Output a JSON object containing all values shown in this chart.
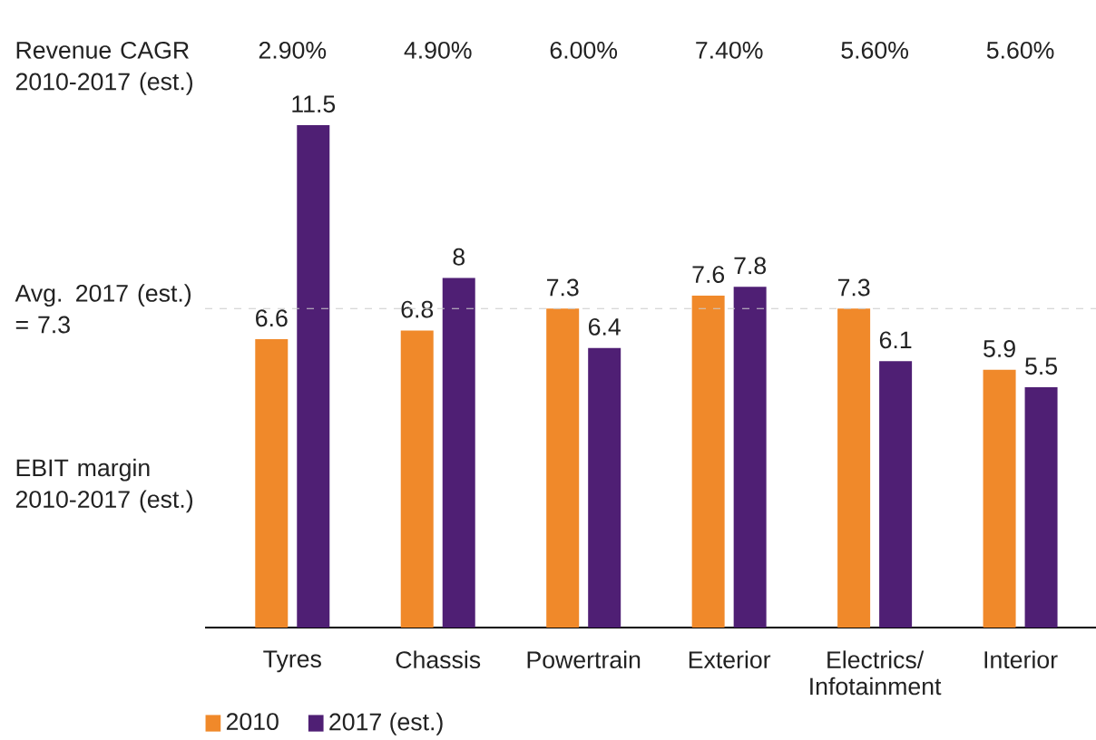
{
  "chart_data": {
    "type": "bar",
    "categories": [
      "Tyres",
      "Chassis",
      "Powertrain",
      "Exterior",
      "Electrics/ Infotainment",
      "Interior"
    ],
    "series": [
      {
        "name": "2010",
        "color": "#f0892a",
        "values": [
          6.6,
          6.8,
          7.3,
          7.6,
          7.3,
          5.9
        ]
      },
      {
        "name": "2017 (est.)",
        "color": "#4f1f74",
        "values": [
          11.5,
          8,
          6.4,
          7.8,
          6.1,
          5.5
        ]
      }
    ],
    "data_labels": true,
    "legend": "bottom left",
    "ref_lines": [
      {
        "axis": "y",
        "value": 7.3,
        "label": "Avg. 2017 (est.) = 7.3",
        "color": "#cccccc",
        "line_style": "dashed"
      }
    ],
    "annotations": [
      "Revenue CAGR 2010-2017 (est.)",
      "2.90%",
      "4.90%",
      "6.00%",
      "7.40%",
      "5.60%",
      "5.60%",
      "EBIT margin 2010-2017 (est.)"
    ]
  }
}
